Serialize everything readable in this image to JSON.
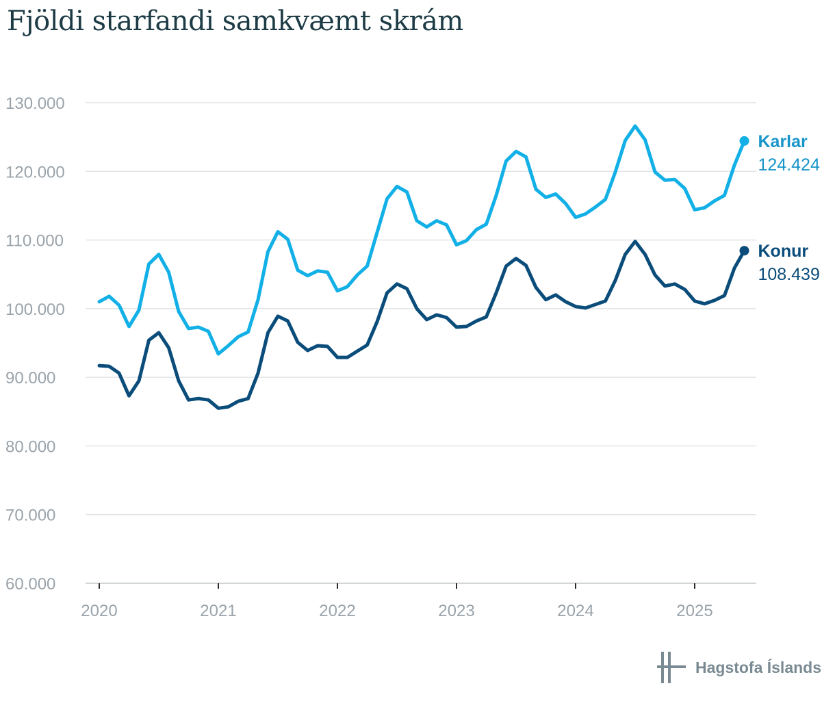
{
  "title": "Fjöldi starfandi samkvæmt skrám",
  "logo": {
    "text": "Hagstofa Íslands",
    "icon": "hagstofa-logo-icon"
  },
  "colors": {
    "karlar": "#12b0e6",
    "konur": "#0a4c7a",
    "grid": "#e1e4e6",
    "axis_text": "#9aa3aa",
    "title": "#1d3b45"
  },
  "chart_data": {
    "type": "line",
    "title": "Fjöldi starfandi samkvæmt skrám",
    "xlabel": "",
    "ylabel": "",
    "ylim": [
      60000,
      130000
    ],
    "xlim": [
      2020,
      2025.5
    ],
    "yticks": [
      "60.000",
      "70.000",
      "80.000",
      "90.000",
      "100.000",
      "110.000",
      "120.000",
      "130.000"
    ],
    "xticks": [
      "2020",
      "2021",
      "2022",
      "2023",
      "2024",
      "2025"
    ],
    "grid": true,
    "series": [
      {
        "name": "Karlar",
        "end_label": "124.424",
        "x_start": "2020-01",
        "frequency": "monthly",
        "values": [
          101000,
          101800,
          100500,
          97400,
          99800,
          106500,
          107900,
          105300,
          99600,
          97100,
          97300,
          96700,
          93400,
          94600,
          95900,
          96600,
          101300,
          108300,
          111200,
          110100,
          105600,
          104800,
          105500,
          105300,
          102600,
          103200,
          104900,
          106200,
          111100,
          116000,
          117800,
          117000,
          112800,
          111900,
          112800,
          112200,
          109300,
          109900,
          111500,
          112300,
          116500,
          121500,
          122900,
          122100,
          117400,
          116200,
          116700,
          115300,
          113300,
          113800,
          114800,
          115900,
          119900,
          124500,
          126600,
          124600,
          119900,
          118700,
          118800,
          117500,
          114400,
          114700,
          115700,
          116500,
          120900,
          124424
        ]
      },
      {
        "name": "Konur",
        "end_label": "108.439",
        "x_start": "2020-01",
        "frequency": "monthly",
        "values": [
          91700,
          91600,
          90600,
          87300,
          89500,
          95400,
          96500,
          94300,
          89500,
          86700,
          86900,
          86700,
          85500,
          85700,
          86500,
          86900,
          90600,
          96500,
          98900,
          98200,
          95100,
          93900,
          94600,
          94500,
          92900,
          92900,
          93800,
          94700,
          98100,
          102300,
          103600,
          102900,
          100000,
          98400,
          99100,
          98700,
          97300,
          97400,
          98200,
          98800,
          102300,
          106200,
          107300,
          106300,
          103100,
          101300,
          102000,
          101000,
          100300,
          100100,
          100600,
          101100,
          104100,
          107900,
          109800,
          107900,
          104900,
          103300,
          103600,
          102800,
          101100,
          100700,
          101200,
          101900,
          105900,
          108439
        ]
      }
    ]
  }
}
